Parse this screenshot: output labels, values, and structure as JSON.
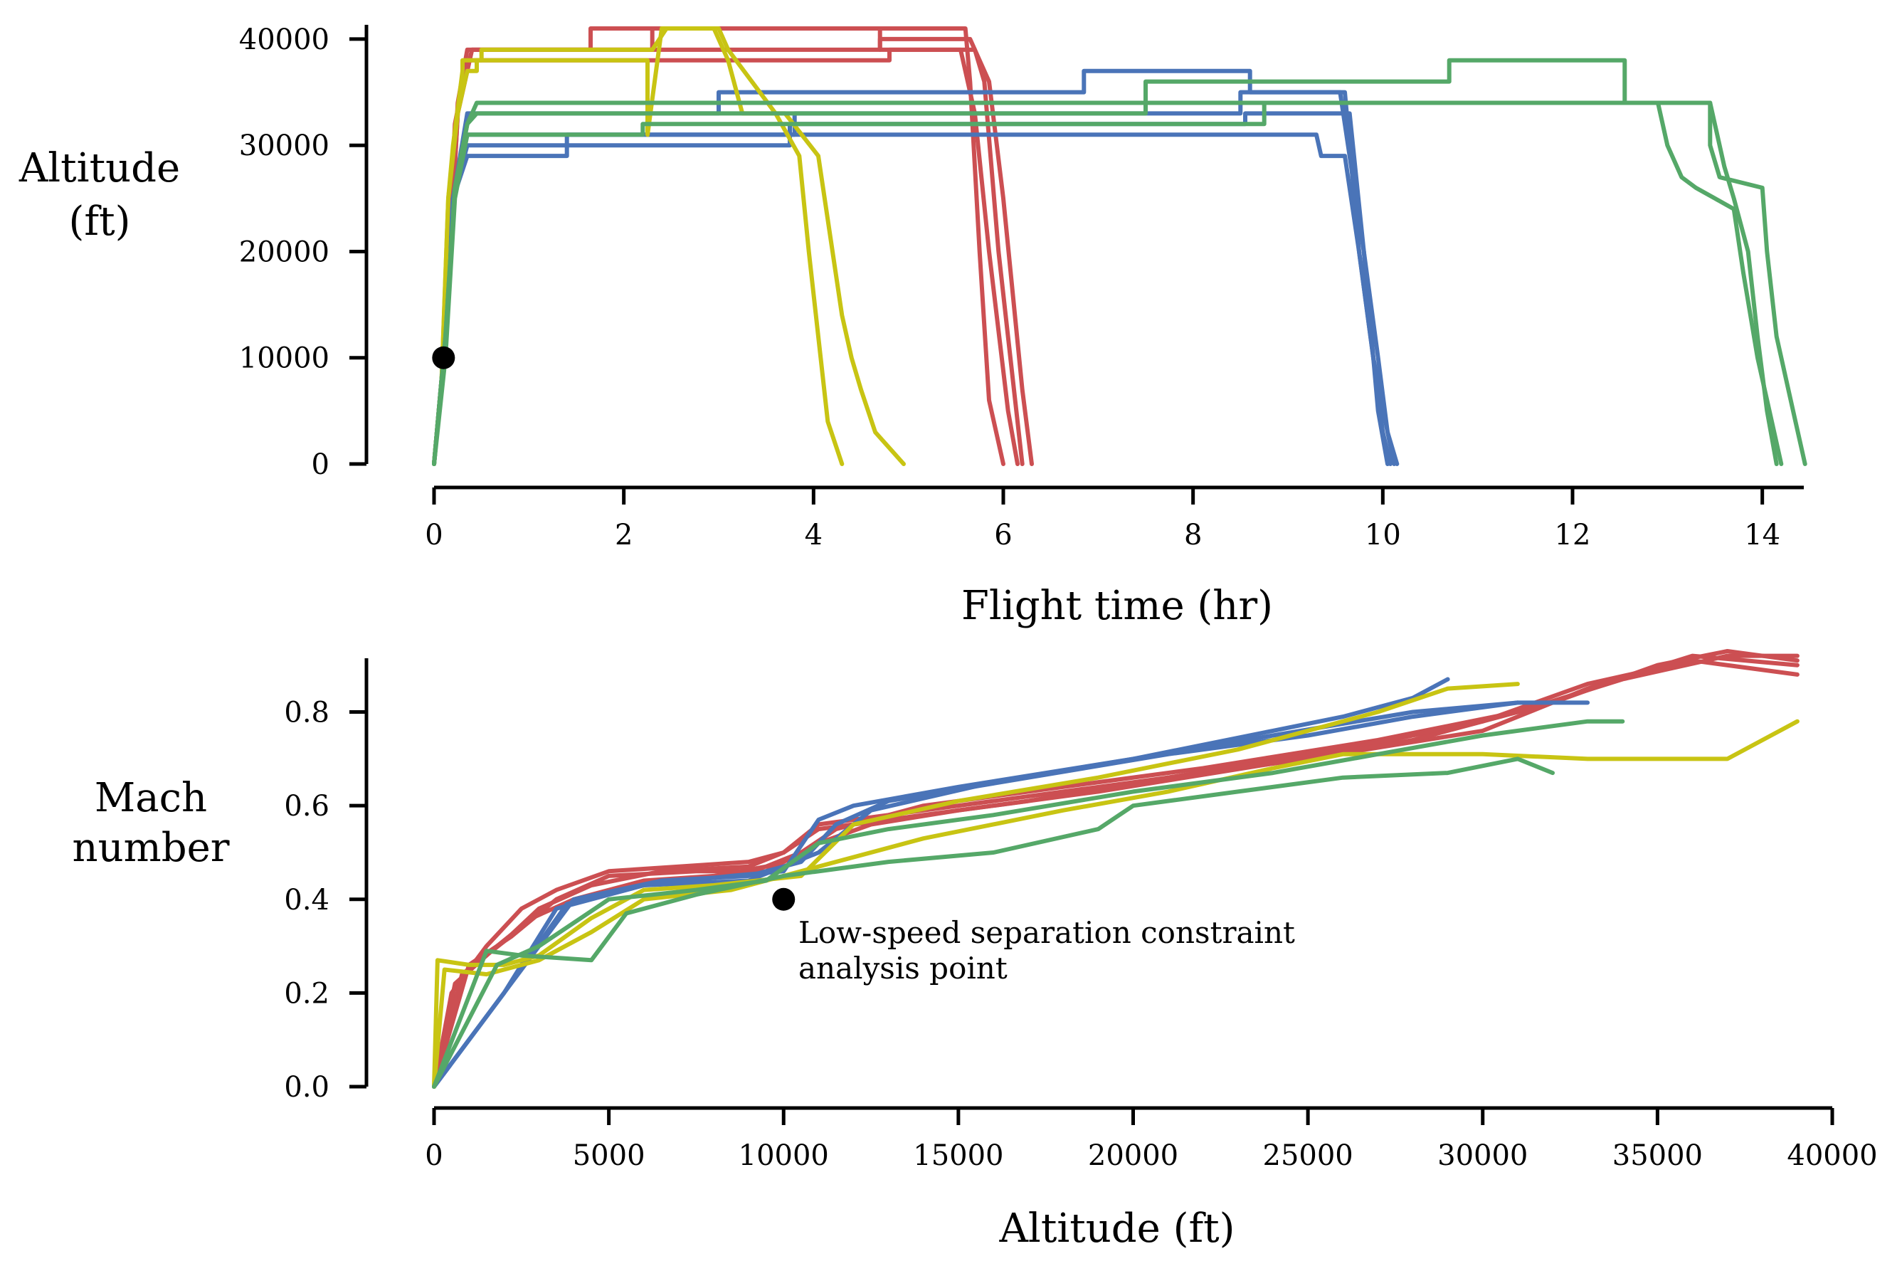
{
  "colors": {
    "red": "#cc4f52",
    "blue": "#4a74b8",
    "yellow": "#c8c413",
    "green": "#55a868",
    "marker": "#000000"
  },
  "chart_data": [
    {
      "type": "line",
      "xlabel": "Flight time (hr)",
      "ylabel": [
        "Altitude",
        "(ft)"
      ],
      "xlim": [
        0,
        14.4
      ],
      "ylim": [
        0,
        41000
      ],
      "xticks": [
        0,
        2,
        4,
        6,
        8,
        10,
        12,
        14
      ],
      "yticks": [
        0,
        10000,
        20000,
        30000,
        40000
      ],
      "xtick_labels": [
        "0",
        "2",
        "4",
        "6",
        "8",
        "10",
        "12",
        "14"
      ],
      "ytick_labels": [
        "0",
        "10000",
        "20000",
        "30000",
        "40000"
      ],
      "marker": {
        "x": 0.1,
        "y": 10000
      },
      "series": [
        {
          "name": "red-1",
          "color": "red",
          "x": [
            0,
            0.12,
            0.25,
            0.35,
            1.65,
            1.65,
            5.6,
            5.65,
            5.75,
            5.85,
            6.0
          ],
          "y": [
            0,
            12000,
            34000,
            39000,
            39000,
            41000,
            41000,
            36000,
            20000,
            6000,
            0
          ]
        },
        {
          "name": "red-2",
          "color": "red",
          "x": [
            0,
            0.12,
            0.25,
            0.4,
            2.3,
            2.3,
            4.7,
            4.7,
            5.7,
            5.8,
            5.95,
            6.1,
            6.2
          ],
          "y": [
            0,
            12000,
            33000,
            39000,
            39000,
            41000,
            41000,
            39000,
            39000,
            36000,
            20000,
            8000,
            0
          ]
        },
        {
          "name": "red-3",
          "color": "red",
          "x": [
            0,
            0.12,
            0.25,
            0.4,
            4.7,
            4.7,
            5.65,
            5.85,
            6.0,
            6.2,
            6.3
          ],
          "y": [
            0,
            12000,
            33000,
            39000,
            39000,
            40000,
            40000,
            36000,
            25000,
            7000,
            0
          ]
        },
        {
          "name": "red-4",
          "color": "red",
          "x": [
            0,
            0.1,
            0.22,
            0.35,
            4.8,
            4.8,
            5.55,
            5.7,
            5.85,
            6.05,
            6.15
          ],
          "y": [
            0,
            10000,
            32000,
            38000,
            38000,
            39000,
            39000,
            33000,
            20000,
            5000,
            0
          ]
        },
        {
          "name": "blue-1",
          "color": "blue",
          "x": [
            0,
            0.1,
            0.2,
            0.35,
            3.0,
            3.0,
            6.85,
            6.85,
            8.6,
            8.6,
            9.55,
            9.65,
            9.8,
            9.95,
            10.05
          ],
          "y": [
            0,
            10000,
            25000,
            33000,
            33000,
            35000,
            35000,
            37000,
            37000,
            35000,
            35000,
            29000,
            20000,
            5000,
            0
          ]
        },
        {
          "name": "blue-2",
          "color": "blue",
          "x": [
            0,
            0.1,
            0.2,
            0.35,
            1.4,
            1.4,
            9.3,
            9.35,
            9.6,
            9.75,
            9.9,
            10.0,
            10.08
          ],
          "y": [
            0,
            10000,
            25000,
            29000,
            29000,
            31000,
            31000,
            29000,
            29000,
            20000,
            10000,
            3000,
            0
          ]
        },
        {
          "name": "blue-3",
          "color": "blue",
          "x": [
            0,
            0.1,
            0.2,
            0.35,
            3.8,
            3.8,
            6.85,
            6.85,
            8.5,
            8.5,
            9.6,
            9.75,
            9.9,
            10.05,
            10.12
          ],
          "y": [
            0,
            10000,
            25000,
            31000,
            31000,
            33000,
            33000,
            33000,
            33000,
            35000,
            35000,
            20000,
            10000,
            3000,
            0
          ]
        },
        {
          "name": "blue-4",
          "color": "blue",
          "x": [
            0,
            0.1,
            0.2,
            0.35,
            3.75,
            3.75,
            8.55,
            8.55,
            9.65,
            9.8,
            9.95,
            10.05,
            10.15
          ],
          "y": [
            0,
            10000,
            25000,
            30000,
            30000,
            32000,
            32000,
            33000,
            33000,
            20000,
            10000,
            3000,
            0
          ]
        },
        {
          "name": "yellow-1",
          "color": "yellow",
          "x": [
            0,
            0.08,
            0.15,
            0.2,
            0.3,
            0.3,
            0.5,
            0.5,
            2.3,
            2.45,
            2.5,
            3.0,
            3.1,
            3.6,
            3.85,
            3.95,
            4.05,
            4.15,
            4.3
          ],
          "y": [
            0,
            8000,
            25000,
            30000,
            37000,
            38000,
            38000,
            39000,
            39000,
            41000,
            41000,
            41000,
            39000,
            33000,
            29000,
            20000,
            12000,
            4000,
            0
          ]
        },
        {
          "name": "yellow-2",
          "color": "yellow",
          "x": [
            0,
            0.08,
            0.15,
            0.25,
            0.35,
            0.45,
            0.45,
            2.25,
            2.25,
            2.4,
            2.95,
            3.1,
            3.25,
            3.7,
            4.05,
            4.2,
            4.3,
            4.4,
            4.5,
            4.65,
            4.95
          ],
          "y": [
            0,
            8000,
            25000,
            33000,
            37000,
            37000,
            38000,
            38000,
            31000,
            41000,
            41000,
            38000,
            33000,
            33000,
            29000,
            20000,
            14000,
            10000,
            7000,
            3000,
            0
          ]
        },
        {
          "name": "green-1",
          "color": "green",
          "x": [
            0,
            0.12,
            0.22,
            0.35,
            0.45,
            7.5,
            7.5,
            10.7,
            10.7,
            12.55,
            12.55,
            13.45,
            13.6,
            13.7,
            13.85,
            13.95,
            14.05,
            14.15
          ],
          "y": [
            0,
            12000,
            26000,
            32000,
            33000,
            33000,
            36000,
            36000,
            38000,
            38000,
            34000,
            34000,
            28000,
            25000,
            20000,
            12000,
            5000,
            0
          ]
        },
        {
          "name": "green-2",
          "color": "green",
          "x": [
            0,
            0.12,
            0.22,
            0.35,
            0.45,
            13.45,
            13.45,
            13.55,
            14.0,
            14.05,
            14.15,
            14.25,
            14.35,
            14.45
          ],
          "y": [
            0,
            12000,
            26000,
            32000,
            34000,
            34000,
            30000,
            27000,
            26000,
            20000,
            12000,
            8000,
            4000,
            0
          ]
        },
        {
          "name": "green-3",
          "color": "green",
          "x": [
            0,
            0.12,
            0.22,
            0.35,
            2.2,
            2.2,
            8.75,
            8.75,
            12.9,
            13.0,
            13.15,
            13.3,
            13.5,
            13.7,
            13.8,
            13.95,
            14.1,
            14.2
          ],
          "y": [
            0,
            10000,
            25000,
            31000,
            31000,
            32000,
            32000,
            34000,
            34000,
            30000,
            27000,
            26000,
            25000,
            24000,
            18000,
            10000,
            4000,
            0
          ]
        }
      ]
    },
    {
      "type": "line",
      "xlabel": "Altitude (ft)",
      "ylabel": [
        "Mach",
        "number"
      ],
      "xlim": [
        0,
        40000
      ],
      "ylim": [
        0,
        0.93
      ],
      "xticks": [
        0,
        5000,
        10000,
        15000,
        20000,
        25000,
        30000,
        35000,
        40000
      ],
      "yticks": [
        0.0,
        0.2,
        0.4,
        0.6,
        0.8
      ],
      "xtick_labels": [
        "0",
        "5000",
        "10000",
        "15000",
        "20000",
        "25000",
        "30000",
        "35000",
        "40000"
      ],
      "ytick_labels": [
        "0.0",
        "0.2",
        "0.4",
        "0.6",
        "0.8"
      ],
      "marker": {
        "x": 10000,
        "y": 0.4
      },
      "annotation": [
        "Low-speed separation constraint",
        "analysis point"
      ],
      "series": [
        {
          "name": "red-a",
          "color": "red",
          "x": [
            0,
            500,
            1500,
            2500,
            3500,
            5000,
            7000,
            9000,
            10000,
            11000,
            13000,
            16000,
            20000,
            25000,
            30000,
            33000,
            36000,
            39000
          ],
          "y": [
            0,
            0.2,
            0.3,
            0.38,
            0.42,
            0.46,
            0.47,
            0.48,
            0.5,
            0.56,
            0.58,
            0.61,
            0.65,
            0.7,
            0.76,
            0.85,
            0.92,
            0.9
          ]
        },
        {
          "name": "red-b",
          "color": "red",
          "x": [
            0,
            600,
            1800,
            2800,
            4000,
            6000,
            8000,
            9500,
            10500,
            11500,
            14000,
            18000,
            22000,
            27000,
            31000,
            34000,
            37000,
            39000
          ],
          "y": [
            0,
            0.22,
            0.3,
            0.36,
            0.4,
            0.44,
            0.45,
            0.47,
            0.5,
            0.55,
            0.6,
            0.64,
            0.68,
            0.74,
            0.8,
            0.87,
            0.92,
            0.92
          ]
        },
        {
          "name": "red-c",
          "color": "red",
          "x": [
            0,
            800,
            2000,
            3000,
            4500,
            6500,
            9000,
            10000,
            11000,
            13000,
            17000,
            21000,
            26000,
            30000,
            33000,
            36000,
            39000
          ],
          "y": [
            0,
            0.24,
            0.31,
            0.38,
            0.43,
            0.46,
            0.47,
            0.5,
            0.55,
            0.57,
            0.61,
            0.66,
            0.72,
            0.78,
            0.86,
            0.91,
            0.88
          ]
        },
        {
          "name": "red-d",
          "color": "red",
          "x": [
            0,
            1000,
            2200,
            3500,
            5000,
            7500,
            9500,
            11000,
            12500,
            15000,
            19000,
            24000,
            28000,
            32000,
            35000,
            37000,
            39000
          ],
          "y": [
            0,
            0.26,
            0.32,
            0.4,
            0.45,
            0.46,
            0.46,
            0.52,
            0.56,
            0.59,
            0.63,
            0.69,
            0.74,
            0.82,
            0.9,
            0.93,
            0.91
          ]
        },
        {
          "name": "blue-a",
          "color": "blue",
          "x": [
            0,
            2000,
            3500,
            6000,
            8500,
            10000,
            11000,
            12000,
            15000,
            20000,
            24000,
            26000,
            28000,
            29000
          ],
          "y": [
            0,
            0.2,
            0.38,
            0.43,
            0.45,
            0.46,
            0.57,
            0.6,
            0.64,
            0.7,
            0.76,
            0.79,
            0.83,
            0.87
          ]
        },
        {
          "name": "blue-b",
          "color": "blue",
          "x": [
            0,
            2200,
            4000,
            6500,
            9000,
            10500,
            11500,
            13000,
            17000,
            21000,
            25000,
            28000,
            31000
          ],
          "y": [
            0,
            0.22,
            0.4,
            0.44,
            0.45,
            0.48,
            0.56,
            0.61,
            0.66,
            0.71,
            0.75,
            0.79,
            0.82
          ]
        },
        {
          "name": "blue-c",
          "color": "blue",
          "x": [
            0,
            2000,
            3800,
            6000,
            9000,
            11000,
            12500,
            16000,
            20000,
            24000,
            28000,
            31000,
            33000
          ],
          "y": [
            0,
            0.2,
            0.39,
            0.43,
            0.44,
            0.5,
            0.59,
            0.65,
            0.7,
            0.75,
            0.8,
            0.82,
            0.82
          ]
        },
        {
          "name": "yellow-a",
          "color": "yellow",
          "x": [
            0,
            100,
            1000,
            2000,
            3000,
            4500,
            6000,
            8000,
            10500,
            12000,
            15000,
            19000,
            23000,
            27000,
            29000,
            31000
          ],
          "y": [
            0,
            0.27,
            0.26,
            0.26,
            0.28,
            0.36,
            0.42,
            0.43,
            0.45,
            0.56,
            0.61,
            0.66,
            0.72,
            0.8,
            0.85,
            0.86
          ]
        },
        {
          "name": "yellow-b",
          "color": "yellow",
          "x": [
            0,
            300,
            1500,
            3000,
            4500,
            6000,
            8500,
            11000,
            14000,
            18000,
            21000,
            24000,
            26000,
            28000,
            30000,
            33000,
            37000,
            38000,
            39000
          ],
          "y": [
            0,
            0.25,
            0.24,
            0.27,
            0.33,
            0.4,
            0.42,
            0.47,
            0.53,
            0.59,
            0.63,
            0.68,
            0.71,
            0.71,
            0.71,
            0.7,
            0.7,
            0.74,
            0.78
          ]
        },
        {
          "name": "green-a",
          "color": "green",
          "x": [
            0,
            1500,
            2500,
            4500,
            5500,
            7500,
            10000,
            13000,
            16000,
            19000,
            20000,
            23000,
            26000,
            29000,
            31000,
            32000
          ],
          "y": [
            0,
            0.29,
            0.28,
            0.27,
            0.37,
            0.41,
            0.45,
            0.48,
            0.5,
            0.55,
            0.6,
            0.63,
            0.66,
            0.67,
            0.7,
            0.67
          ]
        },
        {
          "name": "green-b",
          "color": "green",
          "x": [
            0,
            1800,
            3000,
            5000,
            7500,
            9500,
            11000,
            13000,
            16000,
            20000,
            24000,
            27000,
            30000,
            33000,
            34000
          ],
          "y": [
            0,
            0.26,
            0.3,
            0.4,
            0.42,
            0.44,
            0.52,
            0.55,
            0.58,
            0.63,
            0.67,
            0.71,
            0.75,
            0.78,
            0.78
          ]
        }
      ]
    }
  ]
}
